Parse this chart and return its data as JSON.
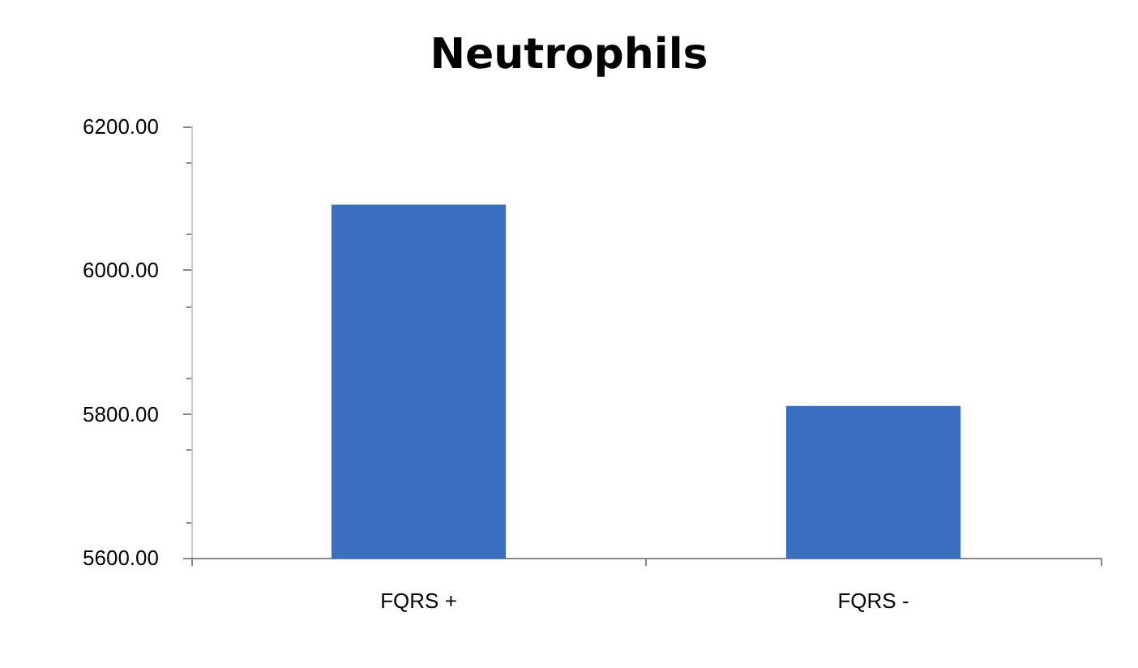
{
  "chart_data": {
    "type": "bar",
    "title": "Neutrophils",
    "categories": [
      "FQRS +",
      "FQRS -"
    ],
    "values": [
      6090,
      5810
    ],
    "color": "#3a6fbf",
    "ylim": [
      5600,
      6200
    ],
    "yticks": [
      {
        "value": 5600,
        "label": "5600.00"
      },
      {
        "value": 5800,
        "label": "5800.00"
      },
      {
        "value": 6000,
        "label": "6000.00"
      },
      {
        "value": 6200,
        "label": "6200.00"
      }
    ],
    "grid": false
  }
}
